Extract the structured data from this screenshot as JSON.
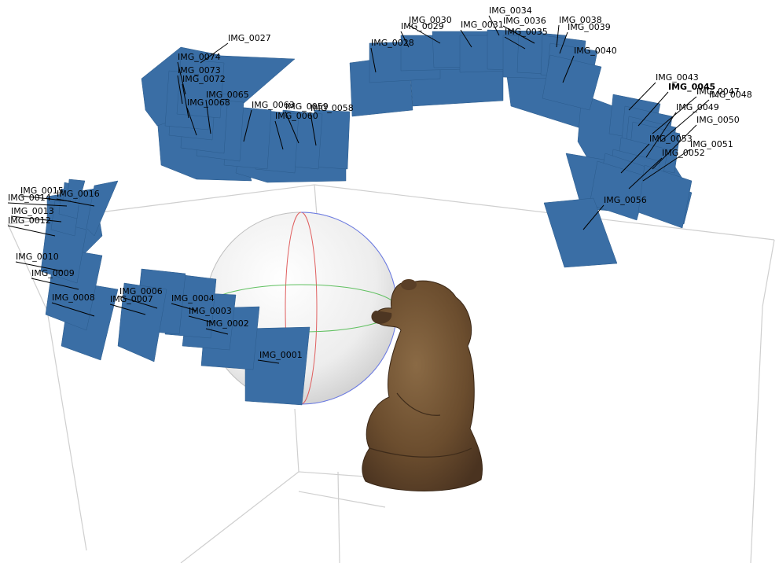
{
  "colors": {
    "background": "#ffffff",
    "camera_fill": "#3a6ea5",
    "bounding_box": "#c8c8c8",
    "sphere": "#d9d9d9",
    "axis_x": "#e05050",
    "axis_y": "#50c050",
    "axis_z": "#5060e0",
    "model": "#6b4a2a"
  },
  "cameras": [
    {
      "id": "cam-0001",
      "label": "IMG_0001"
    },
    {
      "id": "cam-0002",
      "label": "IMG_0002"
    },
    {
      "id": "cam-0003",
      "label": "IMG_0003"
    },
    {
      "id": "cam-0004",
      "label": "IMG_0004"
    },
    {
      "id": "cam-0006",
      "label": "IMG_0006"
    },
    {
      "id": "cam-0007",
      "label": "IMG_0007"
    },
    {
      "id": "cam-0008",
      "label": "IMG_0008"
    },
    {
      "id": "cam-0009",
      "label": "IMG_0009"
    },
    {
      "id": "cam-0010",
      "label": "IMG_0010"
    },
    {
      "id": "cam-0012",
      "label": "IMG_0012"
    },
    {
      "id": "cam-0013",
      "label": "IMG_0013"
    },
    {
      "id": "cam-0014",
      "label": "IMG_0014"
    },
    {
      "id": "cam-0015",
      "label": "IMG_0015"
    },
    {
      "id": "cam-0016",
      "label": "IMG_0016"
    },
    {
      "id": "cam-0027",
      "label": "IMG_0027"
    },
    {
      "id": "cam-0028",
      "label": "IMG_0028"
    },
    {
      "id": "cam-0029",
      "label": "IMG_0029"
    },
    {
      "id": "cam-0030",
      "label": "IMG_0030"
    },
    {
      "id": "cam-0031",
      "label": "IMG_0031"
    },
    {
      "id": "cam-0034",
      "label": "IMG_0034"
    },
    {
      "id": "cam-0035",
      "label": "IMG_0035"
    },
    {
      "id": "cam-0036",
      "label": "IMG_0036"
    },
    {
      "id": "cam-0038",
      "label": "IMG_0038"
    },
    {
      "id": "cam-0039",
      "label": "IMG_0039"
    },
    {
      "id": "cam-0040",
      "label": "IMG_0040"
    },
    {
      "id": "cam-0043",
      "label": "IMG_0043"
    },
    {
      "id": "cam-0045",
      "label": "IMG_0045"
    },
    {
      "id": "cam-0047",
      "label": "IMG_0047"
    },
    {
      "id": "cam-0048",
      "label": "IMG_0048"
    },
    {
      "id": "cam-0049",
      "label": "IMG_0049"
    },
    {
      "id": "cam-0050",
      "label": "IMG_0050"
    },
    {
      "id": "cam-0051",
      "label": "IMG_0051"
    },
    {
      "id": "cam-0052",
      "label": "IMG_0052"
    },
    {
      "id": "cam-0053",
      "label": "IMG_0053"
    },
    {
      "id": "cam-0056",
      "label": "IMG_0056"
    },
    {
      "id": "cam-0058",
      "label": "IMG_0058"
    },
    {
      "id": "cam-0059",
      "label": "IMG_0059"
    },
    {
      "id": "cam-0060",
      "label": "IMG_0060"
    },
    {
      "id": "cam-0063",
      "label": "IMG_0063"
    },
    {
      "id": "cam-0065",
      "label": "IMG_0065"
    },
    {
      "id": "cam-0068",
      "label": "IMG_0068"
    },
    {
      "id": "cam-0072",
      "label": "IMG_0072"
    },
    {
      "id": "cam-0073",
      "label": "IMG_0073"
    },
    {
      "id": "cam-0074",
      "label": "IMG_0074"
    }
  ]
}
